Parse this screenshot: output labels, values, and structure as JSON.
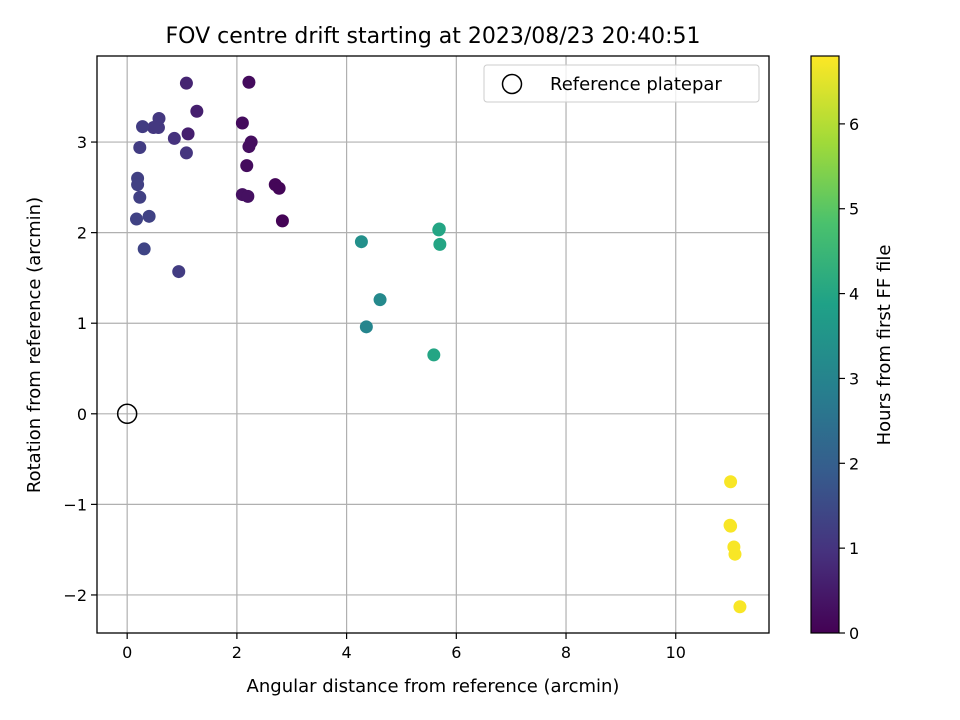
{
  "chart_data": {
    "type": "scatter",
    "title": "FOV centre drift starting at 2023/08/23 20:40:51",
    "xlabel": "Angular distance from reference (arcmin)",
    "ylabel": "Rotation from reference (arcmin)",
    "xlim": [
      -0.55,
      11.7
    ],
    "ylim": [
      -2.42,
      3.95
    ],
    "xticks": [
      0,
      2,
      4,
      6,
      8,
      10
    ],
    "yticks": [
      -2,
      -1,
      0,
      1,
      2,
      3
    ],
    "xtick_labels": [
      "0",
      "2",
      "4",
      "6",
      "8",
      "10"
    ],
    "ytick_labels": [
      "−2",
      "−1",
      "0",
      "1",
      "2",
      "3"
    ],
    "grid": true,
    "colormap": "viridis",
    "colorbar": {
      "label": "Hours from first FF file",
      "range": [
        0,
        6.8
      ],
      "ticks": [
        0,
        1,
        2,
        3,
        4,
        5,
        6
      ],
      "tick_labels": [
        "0",
        "1",
        "2",
        "3",
        "4",
        "5",
        "6"
      ]
    },
    "legend": {
      "location": "top-right",
      "entries": [
        "Reference platepar"
      ]
    },
    "reference_point": {
      "x": 0,
      "y": 0,
      "label": "Reference platepar"
    },
    "points": [
      {
        "x": 2.22,
        "y": 3.66,
        "h": 0.2
      },
      {
        "x": 2.1,
        "y": 3.21,
        "h": 0.2
      },
      {
        "x": 2.26,
        "y": 3.0,
        "h": 0.25
      },
      {
        "x": 2.22,
        "y": 2.95,
        "h": 0.25
      },
      {
        "x": 2.18,
        "y": 2.74,
        "h": 0.2
      },
      {
        "x": 2.1,
        "y": 2.42,
        "h": 0.3
      },
      {
        "x": 2.2,
        "y": 2.4,
        "h": 0.3
      },
      {
        "x": 2.7,
        "y": 2.53,
        "h": 0.1
      },
      {
        "x": 2.77,
        "y": 2.49,
        "h": 0.1
      },
      {
        "x": 2.83,
        "y": 2.13,
        "h": 0.05
      },
      {
        "x": 1.08,
        "y": 3.65,
        "h": 0.7
      },
      {
        "x": 1.27,
        "y": 3.34,
        "h": 0.6
      },
      {
        "x": 1.11,
        "y": 3.09,
        "h": 0.6
      },
      {
        "x": 0.58,
        "y": 3.26,
        "h": 1.1
      },
      {
        "x": 0.57,
        "y": 3.16,
        "h": 1.1
      },
      {
        "x": 0.48,
        "y": 3.16,
        "h": 1.1
      },
      {
        "x": 0.28,
        "y": 3.17,
        "h": 1.2
      },
      {
        "x": 0.86,
        "y": 3.04,
        "h": 1.0
      },
      {
        "x": 1.08,
        "y": 2.88,
        "h": 1.05
      },
      {
        "x": 0.23,
        "y": 2.94,
        "h": 1.2
      },
      {
        "x": 0.19,
        "y": 2.6,
        "h": 1.3
      },
      {
        "x": 0.19,
        "y": 2.53,
        "h": 1.3
      },
      {
        "x": 0.23,
        "y": 2.39,
        "h": 1.3
      },
      {
        "x": 0.17,
        "y": 2.15,
        "h": 1.35
      },
      {
        "x": 0.4,
        "y": 2.18,
        "h": 1.35
      },
      {
        "x": 0.31,
        "y": 1.82,
        "h": 1.4
      },
      {
        "x": 0.94,
        "y": 1.57,
        "h": 1.2
      },
      {
        "x": 4.27,
        "y": 1.9,
        "h": 3.4
      },
      {
        "x": 4.61,
        "y": 1.26,
        "h": 3.2
      },
      {
        "x": 4.36,
        "y": 0.96,
        "h": 3.1
      },
      {
        "x": 5.69,
        "y": 2.04,
        "h": 4.0
      },
      {
        "x": 5.68,
        "y": 2.03,
        "h": 4.0
      },
      {
        "x": 5.7,
        "y": 1.87,
        "h": 4.0
      },
      {
        "x": 5.59,
        "y": 0.65,
        "h": 4.0
      },
      {
        "x": 11.0,
        "y": -0.75,
        "h": 6.75
      },
      {
        "x": 10.99,
        "y": -1.23,
        "h": 6.75
      },
      {
        "x": 11.0,
        "y": -1.24,
        "h": 6.75
      },
      {
        "x": 11.06,
        "y": -1.47,
        "h": 6.75
      },
      {
        "x": 11.08,
        "y": -1.55,
        "h": 6.75
      },
      {
        "x": 11.17,
        "y": -2.13,
        "h": 6.75
      }
    ]
  }
}
